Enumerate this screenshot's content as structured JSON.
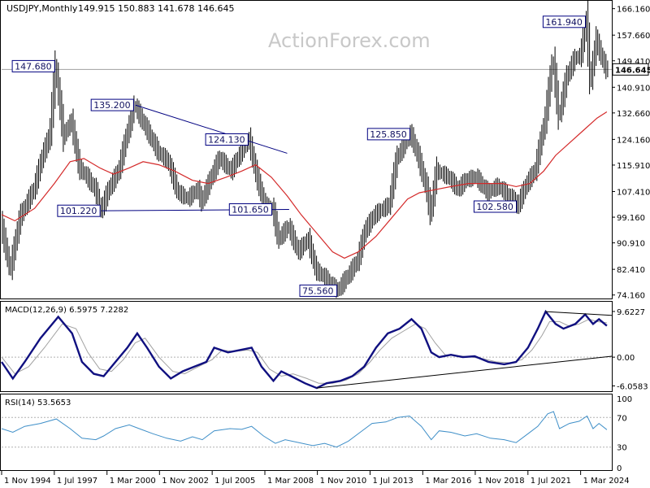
{
  "chart_data": {
    "type": "candlestick",
    "title": "USDJPY,Monthly",
    "ohlc_header": "149.915 150.883 141.678 146.645",
    "watermark": "ActionForex.com",
    "current_price": 146.645,
    "current_price_label": "146.645",
    "price_axis": {
      "range": [
        73.3,
        167.9
      ],
      "ticks": [
        {
          "value": 166.16,
          "label": "166.160"
        },
        {
          "value": 157.66,
          "label": "157.660"
        },
        {
          "value": 149.41,
          "label": "149.410"
        },
        {
          "value": 140.91,
          "label": "140.910"
        },
        {
          "value": 132.66,
          "label": "132.660"
        },
        {
          "value": 124.16,
          "label": "124.160"
        },
        {
          "value": 115.91,
          "label": "115.910"
        },
        {
          "value": 107.41,
          "label": "107.410"
        },
        {
          "value": 99.16,
          "label": "99.160"
        },
        {
          "value": 90.91,
          "label": "90.910"
        },
        {
          "value": 82.41,
          "label": "82.410"
        },
        {
          "value": 74.16,
          "label": "74.160"
        }
      ]
    },
    "time_axis": {
      "range": [
        1994.83,
        2025.75
      ],
      "ticks": [
        {
          "value": 1994.83,
          "label": "1 Nov 1994"
        },
        {
          "value": 1997.5,
          "label": "1 Jul 1997"
        },
        {
          "value": 2000.17,
          "label": "1 Mar 2000"
        },
        {
          "value": 2002.83,
          "label": "1 Nov 2002"
        },
        {
          "value": 2005.5,
          "label": "1 Jul 2005"
        },
        {
          "value": 2008.17,
          "label": "1 Mar 2008"
        },
        {
          "value": 2010.83,
          "label": "1 Nov 2010"
        },
        {
          "value": 2013.5,
          "label": "1 Jul 2013"
        },
        {
          "value": 2016.17,
          "label": "1 Mar 2016"
        },
        {
          "value": 2018.83,
          "label": "1 Nov 2018"
        },
        {
          "value": 2021.5,
          "label": "1 Jul 2021"
        },
        {
          "value": 2024.17,
          "label": "1 Mar 2024"
        }
      ]
    },
    "price_path": [
      [
        1994.83,
        97
      ],
      [
        1995.3,
        82
      ],
      [
        1995.8,
        99
      ],
      [
        1996.5,
        108
      ],
      [
        1997.0,
        120
      ],
      [
        1997.3,
        125
      ],
      [
        1997.6,
        147.68
      ],
      [
        1998.0,
        125
      ],
      [
        1998.4,
        130
      ],
      [
        1998.8,
        115
      ],
      [
        1999.2,
        112
      ],
      [
        1999.6,
        108
      ],
      [
        1999.9,
        101.22
      ],
      [
        2000.3,
        108
      ],
      [
        2000.8,
        114
      ],
      [
        2001.2,
        125
      ],
      [
        2001.6,
        135.2
      ],
      [
        2002.0,
        130
      ],
      [
        2002.4,
        125
      ],
      [
        2002.8,
        120
      ],
      [
        2003.3,
        117
      ],
      [
        2003.8,
        107
      ],
      [
        2004.3,
        105
      ],
      [
        2004.8,
        108
      ],
      [
        2005.0,
        104
      ],
      [
        2005.5,
        112
      ],
      [
        2005.9,
        118
      ],
      [
        2006.5,
        114
      ],
      [
        2007.0,
        120
      ],
      [
        2007.4,
        124.13
      ],
      [
        2007.8,
        112
      ],
      [
        2008.2,
        103
      ],
      [
        2008.6,
        101.65
      ],
      [
        2008.9,
        92
      ],
      [
        2009.4,
        96
      ],
      [
        2009.9,
        88
      ],
      [
        2010.4,
        92
      ],
      [
        2010.8,
        82
      ],
      [
        2011.2,
        80
      ],
      [
        2011.7,
        76.5
      ],
      [
        2011.9,
        75.56
      ],
      [
        2012.4,
        80
      ],
      [
        2012.9,
        85
      ],
      [
        2013.3,
        95
      ],
      [
        2013.8,
        100
      ],
      [
        2014.5,
        103
      ],
      [
        2014.9,
        118
      ],
      [
        2015.4,
        124
      ],
      [
        2015.6,
        125.85
      ],
      [
        2016.0,
        118
      ],
      [
        2016.4,
        108
      ],
      [
        2016.6,
        100
      ],
      [
        2016.9,
        114
      ],
      [
        2017.5,
        112
      ],
      [
        2018.0,
        108
      ],
      [
        2018.4,
        111
      ],
      [
        2018.9,
        112
      ],
      [
        2019.5,
        107
      ],
      [
        2020.0,
        109
      ],
      [
        2020.4,
        107
      ],
      [
        2020.9,
        104
      ],
      [
        2021.0,
        102.58
      ],
      [
        2021.5,
        110
      ],
      [
        2021.9,
        114
      ],
      [
        2022.4,
        130
      ],
      [
        2022.8,
        150
      ],
      [
        2023.1,
        131
      ],
      [
        2023.5,
        144
      ],
      [
        2023.9,
        150
      ],
      [
        2024.2,
        151
      ],
      [
        2024.5,
        161.94
      ],
      [
        2024.7,
        142
      ],
      [
        2025.0,
        156
      ],
      [
        2025.3,
        150
      ],
      [
        2025.5,
        146.645
      ]
    ],
    "ma_path": [
      [
        1994.83,
        100
      ],
      [
        1995.5,
        98
      ],
      [
        1996.5,
        102
      ],
      [
        1997.5,
        110
      ],
      [
        1998.3,
        117
      ],
      [
        1999.0,
        118
      ],
      [
        1999.8,
        115
      ],
      [
        2000.5,
        113
      ],
      [
        2001.3,
        115
      ],
      [
        2002.0,
        117
      ],
      [
        2002.8,
        116
      ],
      [
        2003.6,
        114
      ],
      [
        2004.5,
        111
      ],
      [
        2005.3,
        110
      ],
      [
        2006.2,
        112
      ],
      [
        2007.0,
        114
      ],
      [
        2007.7,
        116
      ],
      [
        2008.5,
        112
      ],
      [
        2009.3,
        106
      ],
      [
        2010.0,
        100
      ],
      [
        2010.8,
        94
      ],
      [
        2011.6,
        88
      ],
      [
        2012.2,
        86
      ],
      [
        2012.9,
        88
      ],
      [
        2013.8,
        93
      ],
      [
        2014.6,
        99
      ],
      [
        2015.4,
        105
      ],
      [
        2016.0,
        107
      ],
      [
        2016.8,
        108
      ],
      [
        2017.6,
        109
      ],
      [
        2018.5,
        110
      ],
      [
        2019.3,
        110
      ],
      [
        2020.2,
        110
      ],
      [
        2020.9,
        109
      ],
      [
        2021.6,
        110
      ],
      [
        2022.3,
        114
      ],
      [
        2022.9,
        119
      ],
      [
        2023.6,
        123
      ],
      [
        2024.3,
        127
      ],
      [
        2025.0,
        131
      ],
      [
        2025.5,
        133
      ]
    ],
    "annotations": [
      {
        "label": "147.680",
        "x": 1997.6,
        "value": 147.68,
        "pos": "left"
      },
      {
        "label": "135.200",
        "x": 2001.6,
        "value": 135.2,
        "pos": "left"
      },
      {
        "label": "124.130",
        "x": 2007.4,
        "value": 124.13,
        "pos": "left"
      },
      {
        "label": "101.220",
        "x": 1999.9,
        "value": 101.22,
        "pos": "left"
      },
      {
        "label": "101.650",
        "x": 2008.6,
        "value": 101.65,
        "pos": "left"
      },
      {
        "label": "75.560",
        "x": 2011.9,
        "value": 75.56,
        "pos": "left"
      },
      {
        "label": "125.850",
        "x": 2015.6,
        "value": 125.85,
        "pos": "left"
      },
      {
        "label": "102.580",
        "x": 2021.0,
        "value": 102.58,
        "pos": "left"
      },
      {
        "label": "161.940",
        "x": 2024.5,
        "value": 161.94,
        "pos": "left"
      }
    ],
    "trendlines_price": [
      {
        "from": [
          2001.6,
          135.2
        ],
        "to": [
          2009.3,
          119.7
        ]
      },
      {
        "from": [
          1999.9,
          101.22
        ],
        "to": [
          2009.4,
          101.65
        ]
      }
    ],
    "macd": {
      "label": "MACD(12,26,9) 6.5975 7.2282",
      "range": [
        -7,
        11.5
      ],
      "ticks": [
        {
          "value": 9.6227,
          "label": "9.6227"
        },
        {
          "value": 0,
          "label": "0.00"
        },
        {
          "value": -6.0583,
          "label": "-6.0583"
        }
      ],
      "macd_path": [
        [
          1994.83,
          -1
        ],
        [
          1995.4,
          -4.5
        ],
        [
          1996.0,
          -1
        ],
        [
          1996.8,
          4
        ],
        [
          1997.7,
          8.5
        ],
        [
          1998.4,
          5
        ],
        [
          1998.9,
          -1
        ],
        [
          1999.5,
          -3.5
        ],
        [
          2000.0,
          -4
        ],
        [
          2000.6,
          -1
        ],
        [
          2001.2,
          2
        ],
        [
          2001.7,
          5
        ],
        [
          2002.2,
          2
        ],
        [
          2002.8,
          -2
        ],
        [
          2003.4,
          -4.5
        ],
        [
          2004.0,
          -3
        ],
        [
          2004.6,
          -2
        ],
        [
          2005.2,
          -1
        ],
        [
          2005.6,
          2
        ],
        [
          2006.3,
          1
        ],
        [
          2006.9,
          1.5
        ],
        [
          2007.5,
          2
        ],
        [
          2008.0,
          -2
        ],
        [
          2008.6,
          -5
        ],
        [
          2009.0,
          -3
        ],
        [
          2009.5,
          -4
        ],
        [
          2010.2,
          -5.5
        ],
        [
          2010.8,
          -6.5
        ],
        [
          2011.3,
          -5.5
        ],
        [
          2012.0,
          -5
        ],
        [
          2012.6,
          -4
        ],
        [
          2013.2,
          -2
        ],
        [
          2013.8,
          2
        ],
        [
          2014.4,
          5
        ],
        [
          2015.0,
          6
        ],
        [
          2015.6,
          8
        ],
        [
          2016.1,
          6
        ],
        [
          2016.6,
          1
        ],
        [
          2017.0,
          0
        ],
        [
          2017.6,
          0.5
        ],
        [
          2018.2,
          0
        ],
        [
          2018.8,
          0.2
        ],
        [
          2019.5,
          -1
        ],
        [
          2020.3,
          -1.5
        ],
        [
          2020.9,
          -1
        ],
        [
          2021.5,
          2
        ],
        [
          2022.0,
          6
        ],
        [
          2022.4,
          9.6
        ],
        [
          2022.9,
          7
        ],
        [
          2023.3,
          6
        ],
        [
          2023.9,
          7
        ],
        [
          2024.4,
          9
        ],
        [
          2024.8,
          7
        ],
        [
          2025.1,
          8
        ],
        [
          2025.5,
          6.5975
        ]
      ],
      "signal_path": [
        [
          1994.83,
          0
        ],
        [
          1995.5,
          -3.5
        ],
        [
          1996.2,
          -2
        ],
        [
          1997.0,
          2
        ],
        [
          1997.9,
          7
        ],
        [
          1998.6,
          6
        ],
        [
          1999.2,
          1
        ],
        [
          1999.8,
          -2.5
        ],
        [
          2000.4,
          -3
        ],
        [
          2001.0,
          -0.5
        ],
        [
          2001.6,
          3
        ],
        [
          2002.1,
          4
        ],
        [
          2002.8,
          0
        ],
        [
          2003.5,
          -3
        ],
        [
          2004.1,
          -3.5
        ],
        [
          2004.8,
          -2
        ],
        [
          2005.5,
          -0.5
        ],
        [
          2006.0,
          1.5
        ],
        [
          2006.6,
          1.2
        ],
        [
          2007.3,
          1.5
        ],
        [
          2007.8,
          1
        ],
        [
          2008.4,
          -2.5
        ],
        [
          2009.0,
          -4
        ],
        [
          2009.6,
          -3.5
        ],
        [
          2010.3,
          -4.5
        ],
        [
          2010.9,
          -5.5
        ],
        [
          2011.6,
          -5.5
        ],
        [
          2012.3,
          -4.8
        ],
        [
          2012.9,
          -3.5
        ],
        [
          2013.5,
          -1
        ],
        [
          2014.0,
          1.5
        ],
        [
          2014.6,
          4
        ],
        [
          2015.2,
          5.5
        ],
        [
          2015.8,
          7
        ],
        [
          2016.3,
          6
        ],
        [
          2016.8,
          3
        ],
        [
          2017.3,
          0.5
        ],
        [
          2017.9,
          0.3
        ],
        [
          2018.5,
          0.1
        ],
        [
          2019.2,
          -0.3
        ],
        [
          2019.9,
          -1
        ],
        [
          2020.6,
          -1.2
        ],
        [
          2021.2,
          -0.5
        ],
        [
          2021.7,
          1.5
        ],
        [
          2022.2,
          4.5
        ],
        [
          2022.6,
          7.5
        ],
        [
          2023.1,
          7.5
        ],
        [
          2023.6,
          6.5
        ],
        [
          2024.1,
          7
        ],
        [
          2024.6,
          8
        ],
        [
          2025.0,
          7.5
        ],
        [
          2025.5,
          7.2282
        ]
      ],
      "trendlines": [
        {
          "from": [
            2010.8,
            -6.5
          ],
          "to": [
            2025.75,
            0.2
          ]
        },
        {
          "from": [
            2022.4,
            9.6
          ],
          "to": [
            2025.75,
            8.8
          ]
        }
      ]
    },
    "rsi": {
      "label": "RSI(14) 53.5653",
      "range": [
        0,
        100
      ],
      "ticks": [
        {
          "value": 100,
          "label": "100"
        },
        {
          "value": 70,
          "label": "70"
        },
        {
          "value": 30,
          "label": "30"
        },
        {
          "value": 0,
          "label": "0"
        }
      ],
      "levels": [
        70,
        30
      ],
      "rsi_path": [
        [
          1994.83,
          55
        ],
        [
          1995.4,
          50
        ],
        [
          1996.0,
          58
        ],
        [
          1996.8,
          62
        ],
        [
          1997.6,
          68
        ],
        [
          1998.3,
          55
        ],
        [
          1998.9,
          42
        ],
        [
          1999.6,
          40
        ],
        [
          2000.0,
          45
        ],
        [
          2000.6,
          55
        ],
        [
          2001.3,
          60
        ],
        [
          2001.8,
          55
        ],
        [
          2002.5,
          48
        ],
        [
          2003.2,
          42
        ],
        [
          2003.9,
          38
        ],
        [
          2004.5,
          44
        ],
        [
          2005.0,
          40
        ],
        [
          2005.6,
          52
        ],
        [
          2006.4,
          55
        ],
        [
          2007.0,
          54
        ],
        [
          2007.5,
          58
        ],
        [
          2008.1,
          45
        ],
        [
          2008.7,
          35
        ],
        [
          2009.2,
          40
        ],
        [
          2009.9,
          36
        ],
        [
          2010.6,
          32
        ],
        [
          2011.2,
          35
        ],
        [
          2011.8,
          30
        ],
        [
          2012.4,
          38
        ],
        [
          2013.0,
          50
        ],
        [
          2013.6,
          62
        ],
        [
          2014.3,
          64
        ],
        [
          2014.9,
          70
        ],
        [
          2015.5,
          72
        ],
        [
          2016.1,
          58
        ],
        [
          2016.6,
          40
        ],
        [
          2017.0,
          52
        ],
        [
          2017.6,
          50
        ],
        [
          2018.3,
          45
        ],
        [
          2018.9,
          48
        ],
        [
          2019.6,
          42
        ],
        [
          2020.3,
          40
        ],
        [
          2020.9,
          36
        ],
        [
          2021.5,
          48
        ],
        [
          2022.0,
          58
        ],
        [
          2022.5,
          75
        ],
        [
          2022.8,
          78
        ],
        [
          2023.1,
          55
        ],
        [
          2023.6,
          62
        ],
        [
          2024.1,
          65
        ],
        [
          2024.5,
          72
        ],
        [
          2024.8,
          55
        ],
        [
          2025.1,
          62
        ],
        [
          2025.5,
          53.5653
        ]
      ]
    },
    "colors": {
      "price": "#000000",
      "ma": "#d42a2a",
      "macd": "#101080",
      "signal": "#a0a0a0",
      "rsi": "#3f8fc8",
      "trendline": "#000080",
      "label_text": "#101060",
      "watermark": "#c8c8c8"
    }
  }
}
